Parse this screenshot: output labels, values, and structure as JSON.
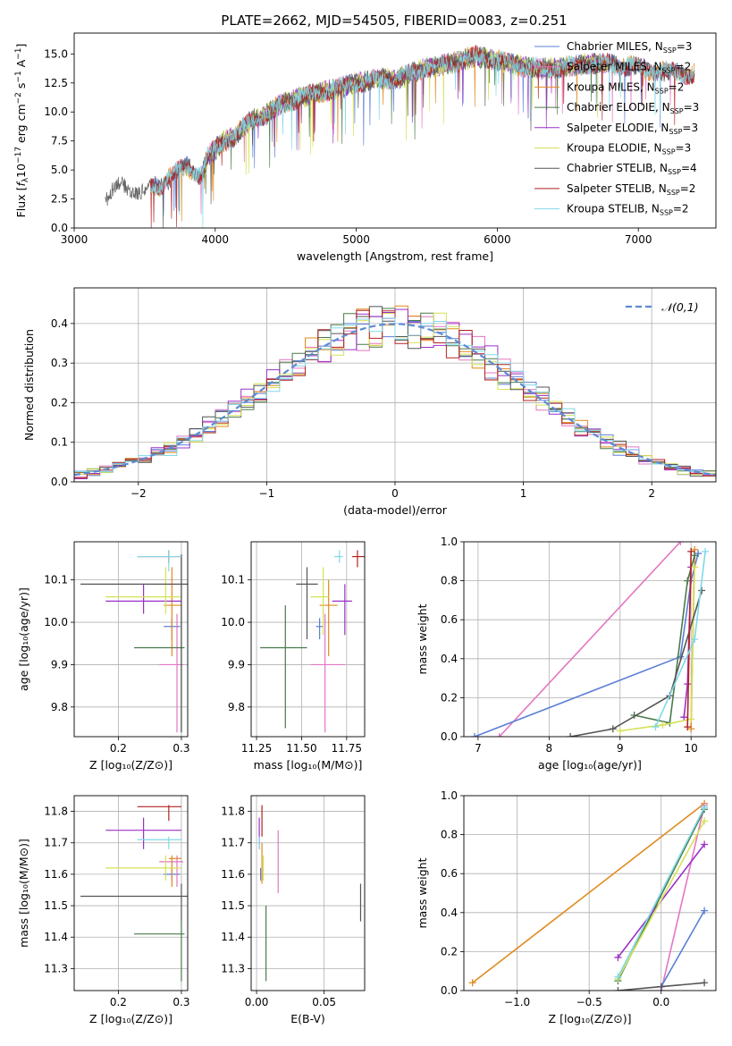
{
  "figure": {
    "title": "PLATE=2662, MJD=54505, FIBERID=0083, z=0.251"
  },
  "chart_data": [
    {
      "type": "line",
      "name": "spectrum",
      "xlabel": "wavelength [Angstrom, rest frame]",
      "ylabel_parts": [
        "Flux [",
        "f",
        "λ",
        "10",
        "−17",
        " erg cm",
        "−2",
        " s",
        "−1",
        " A",
        "−1",
        "]"
      ],
      "xlim": [
        3000,
        7550
      ],
      "ylim": [
        0,
        16.8
      ],
      "xticks": [
        3000,
        4000,
        5000,
        6000,
        7000
      ],
      "yticks": [
        0.0,
        2.5,
        5.0,
        7.5,
        10.0,
        12.5,
        15.0
      ],
      "grid": false,
      "legend_position": "top-right",
      "continuum": {
        "x": [
          3220,
          3300,
          3400,
          3500,
          3600,
          3700,
          3800,
          3900,
          3950,
          4050,
          4150,
          4250,
          4350,
          4450,
          4550,
          4700,
          4850,
          5000,
          5150,
          5300,
          5500,
          5700,
          5850,
          6000,
          6150,
          6300,
          6500,
          6700,
          6900,
          7100,
          7300
        ],
        "y": [
          2.6,
          3.6,
          3.3,
          3.3,
          3.6,
          4.6,
          5.3,
          4.5,
          6.2,
          7.4,
          8.0,
          9.3,
          9.7,
          10.6,
          11.0,
          11.6,
          12.0,
          12.5,
          12.8,
          12.9,
          13.8,
          14.3,
          14.8,
          14.5,
          14.0,
          13.7,
          13.9,
          14.2,
          14.0,
          13.6,
          13.3
        ]
      },
      "series": [
        {
          "name": "Chabrier MILES",
          "nssp": "3",
          "color": "#5B7FD6",
          "xrange": [
            3540,
            7400
          ]
        },
        {
          "name": "Salpeter MILES",
          "nssp": "2",
          "color": "#E377C2",
          "xrange": [
            3540,
            7400
          ]
        },
        {
          "name": "Kroupa MILES",
          "nssp": "2",
          "color": "#E08A1E",
          "xrange": [
            3540,
            7400
          ]
        },
        {
          "name": "Chabrier ELODIE",
          "nssp": "3",
          "color": "#4A7A4A",
          "xrange": [
            3900,
            6800
          ]
        },
        {
          "name": "Salpeter ELODIE",
          "nssp": "3",
          "color": "#9B30C8",
          "xrange": [
            3900,
            6800
          ]
        },
        {
          "name": "Kroupa ELODIE",
          "nssp": "3",
          "color": "#D4E157",
          "xrange": [
            3900,
            6800
          ]
        },
        {
          "name": "Chabrier STELIB",
          "nssp": "4",
          "color": "#555555",
          "xrange": [
            3220,
            7400
          ]
        },
        {
          "name": "Salpeter STELIB",
          "nssp": "2",
          "color": "#B22222",
          "xrange": [
            3540,
            7400
          ]
        },
        {
          "name": "Kroupa STELIB",
          "nssp": "2",
          "color": "#80D8E8",
          "xrange": [
            3540,
            7400
          ]
        }
      ]
    },
    {
      "type": "histogram",
      "name": "residuals",
      "xlabel": "(data-model)/error",
      "ylabel": "Normed distribution",
      "xlim": [
        -2.5,
        2.5
      ],
      "ylim": [
        0,
        0.49
      ],
      "xticks": [
        -2,
        -1,
        0,
        1,
        2
      ],
      "yticks": [
        0.0,
        0.1,
        0.2,
        0.3,
        0.4
      ],
      "grid": true,
      "bin_width": 0.1,
      "legend_position": "top-right",
      "reference": {
        "label": "𝒩(0,1)",
        "mean": 0,
        "sigma": 1,
        "color": "#5B8BD6"
      },
      "note": "nine step histograms, one per model fit, scattering around the N(0,1) curve"
    },
    {
      "type": "scatter",
      "name": "age-vs-Z",
      "xlabel": "Z [log₁₀(Z/Z⊙)]",
      "ylabel": "age  [log₁₀(age/yr)]",
      "xlim": [
        0.13,
        0.31
      ],
      "ylim": [
        9.73,
        10.19
      ],
      "xticks": [
        0.2,
        0.3
      ],
      "yticks": [
        9.8,
        9.9,
        10.0,
        10.1
      ],
      "grid": true,
      "points": [
        {
          "color": "#5B7FD6",
          "x": 0.285,
          "xlo": 0.272,
          "xhi": 0.298,
          "y": 9.99,
          "ylo": 9.96,
          "yhi": 10.01
        },
        {
          "color": "#E377C2",
          "x": 0.293,
          "xlo": 0.265,
          "xhi": 0.303,
          "y": 9.9,
          "ylo": 9.74,
          "yhi": 10.02
        },
        {
          "color": "#E08A1E",
          "x": 0.285,
          "xlo": 0.272,
          "xhi": 0.3,
          "y": 10.04,
          "ylo": 9.92,
          "yhi": 10.13
        },
        {
          "color": "#4A7A4A",
          "x": 0.3,
          "xlo": 0.225,
          "xhi": 0.305,
          "y": 9.94,
          "ylo": 9.74,
          "yhi": 10.16
        },
        {
          "color": "#9B30C8",
          "x": 0.24,
          "xlo": 0.18,
          "xhi": 0.3,
          "y": 10.05,
          "ylo": 10.02,
          "yhi": 10.09
        },
        {
          "color": "#D4E157",
          "x": 0.275,
          "xlo": 0.18,
          "xhi": 0.3,
          "y": 10.06,
          "ylo": 10.02,
          "yhi": 10.13
        },
        {
          "color": "#555555",
          "x": 0.3,
          "xlo": 0.14,
          "xhi": 0.31,
          "y": 10.09,
          "ylo": 9.74,
          "yhi": 10.16
        },
        {
          "color": "#B22222",
          "x": 0.28,
          "xlo": 0.23,
          "xhi": 0.3,
          "y": 10.155,
          "ylo": 10.14,
          "yhi": 10.17
        },
        {
          "color": "#80D8E8",
          "x": 0.28,
          "xlo": 0.23,
          "xhi": 0.3,
          "y": 10.155,
          "ylo": 10.12,
          "yhi": 10.17
        }
      ]
    },
    {
      "type": "scatter",
      "name": "age-vs-mass",
      "xlabel": "mass [log₁₀(M/M⊙)]",
      "ylabel": "",
      "xlim": [
        11.22,
        11.85
      ],
      "ylim": [
        9.73,
        10.19
      ],
      "xticks": [
        11.25,
        11.5,
        11.75
      ],
      "yticks": [
        9.8,
        9.9,
        10.0,
        10.1
      ],
      "grid": true,
      "points": [
        {
          "color": "#5B7FD6",
          "x": 11.6,
          "xlo": 11.58,
          "xhi": 11.62,
          "y": 9.99,
          "ylo": 9.96,
          "yhi": 10.01
        },
        {
          "color": "#E377C2",
          "x": 11.63,
          "xlo": 11.55,
          "xhi": 11.74,
          "y": 9.9,
          "ylo": 9.74,
          "yhi": 10.02
        },
        {
          "color": "#E08A1E",
          "x": 11.65,
          "xlo": 11.6,
          "xhi": 11.7,
          "y": 10.04,
          "ylo": 9.92,
          "yhi": 10.1
        },
        {
          "color": "#4A7A4A",
          "x": 11.41,
          "xlo": 11.27,
          "xhi": 11.53,
          "y": 9.94,
          "ylo": 9.75,
          "yhi": 10.04
        },
        {
          "color": "#9B30C8",
          "x": 11.74,
          "xlo": 11.67,
          "xhi": 11.78,
          "y": 10.05,
          "ylo": 9.97,
          "yhi": 10.09
        },
        {
          "color": "#D4E157",
          "x": 11.62,
          "xlo": 11.55,
          "xhi": 11.65,
          "y": 10.06,
          "ylo": 9.97,
          "yhi": 10.13
        },
        {
          "color": "#555555",
          "x": 11.53,
          "xlo": 11.47,
          "xhi": 11.59,
          "y": 10.09,
          "ylo": 9.96,
          "yhi": 10.13
        },
        {
          "color": "#B22222",
          "x": 11.81,
          "xlo": 11.78,
          "xhi": 11.85,
          "y": 10.155,
          "ylo": 10.13,
          "yhi": 10.17
        },
        {
          "color": "#80D8E8",
          "x": 11.71,
          "xlo": 11.68,
          "xhi": 11.73,
          "y": 10.155,
          "ylo": 10.14,
          "yhi": 10.17
        }
      ]
    },
    {
      "type": "line",
      "name": "massweight-vs-age",
      "xlabel": "age  [log₁₀(age/yr)]",
      "ylabel": "mass weight",
      "xlim": [
        6.8,
        10.35
      ],
      "ylim": [
        0,
        1
      ],
      "xticks": [
        7,
        8,
        9,
        10
      ],
      "yticks": [
        0.0,
        0.2,
        0.4,
        0.6,
        0.8,
        1.0
      ],
      "grid": true,
      "series": [
        {
          "color": "#E377C2",
          "x": [
            7.3,
            9.85
          ],
          "y": [
            0.0,
            1.0
          ]
        },
        {
          "color": "#5B7FD6",
          "x": [
            6.95,
            9.85,
            10.0,
            10.1
          ],
          "y": [
            0.0,
            0.41,
            0.8,
            0.94
          ]
        },
        {
          "color": "#E08A1E",
          "x": [
            10.0,
            10.05
          ],
          "y": [
            0.04,
            0.96
          ]
        },
        {
          "color": "#4A7A4A",
          "x": [
            9.2,
            9.7,
            9.95,
            10.05
          ],
          "y": [
            0.11,
            0.07,
            0.8,
            0.93
          ]
        },
        {
          "color": "#9B30C8",
          "x": [
            9.9,
            9.95,
            10.0
          ],
          "y": [
            0.1,
            0.27,
            0.87
          ]
        },
        {
          "color": "#D4E157",
          "x": [
            9.0,
            9.6,
            10.0,
            10.05
          ],
          "y": [
            0.03,
            0.06,
            0.09,
            0.87
          ]
        },
        {
          "color": "#555555",
          "x": [
            8.3,
            8.9,
            9.7,
            10.15
          ],
          "y": [
            0.0,
            0.04,
            0.21,
            0.75
          ]
        },
        {
          "color": "#B22222",
          "x": [
            9.95,
            10.0
          ],
          "y": [
            0.05,
            0.95
          ]
        },
        {
          "color": "#80D8E8",
          "x": [
            9.5,
            10.05,
            10.2
          ],
          "y": [
            0.05,
            0.5,
            0.95
          ]
        }
      ]
    },
    {
      "type": "scatter",
      "name": "mass-vs-Z",
      "xlabel": "Z [log₁₀(Z/Z⊙)]",
      "ylabel": "mass [log₁₀(M/M⊙)]",
      "xlim": [
        0.13,
        0.31
      ],
      "ylim": [
        11.23,
        11.85
      ],
      "xticks": [
        0.2,
        0.3
      ],
      "yticks": [
        11.3,
        11.4,
        11.5,
        11.6,
        11.7,
        11.8
      ],
      "grid": true,
      "points": [
        {
          "color": "#5B7FD6",
          "x": 0.285,
          "xlo": 0.272,
          "xhi": 0.298,
          "y": 11.6,
          "ylo": 11.58,
          "yhi": 11.62
        },
        {
          "color": "#E377C2",
          "x": 0.293,
          "xlo": 0.265,
          "xhi": 0.303,
          "y": 11.64,
          "ylo": 11.56,
          "yhi": 11.66
        },
        {
          "color": "#E08A1E",
          "x": 0.285,
          "xlo": 0.28,
          "xhi": 0.3,
          "y": 11.65,
          "ylo": 11.56,
          "yhi": 11.66
        },
        {
          "color": "#4A7A4A",
          "x": 0.3,
          "xlo": 0.225,
          "xhi": 0.305,
          "y": 11.41,
          "ylo": 11.26,
          "yhi": 11.45
        },
        {
          "color": "#9B30C8",
          "x": 0.24,
          "xlo": 0.18,
          "xhi": 0.3,
          "y": 11.74,
          "ylo": 11.68,
          "yhi": 11.78
        },
        {
          "color": "#D4E157",
          "x": 0.275,
          "xlo": 0.18,
          "xhi": 0.3,
          "y": 11.62,
          "ylo": 11.58,
          "yhi": 11.66
        },
        {
          "color": "#555555",
          "x": 0.3,
          "xlo": 0.14,
          "xhi": 0.31,
          "y": 11.53,
          "ylo": 11.45,
          "yhi": 11.57
        },
        {
          "color": "#B22222",
          "x": 0.28,
          "xlo": 0.23,
          "xhi": 0.3,
          "y": 11.815,
          "ylo": 11.77,
          "yhi": 11.82
        },
        {
          "color": "#80D8E8",
          "x": 0.28,
          "xlo": 0.23,
          "xhi": 0.3,
          "y": 11.71,
          "ylo": 11.68,
          "yhi": 11.72
        }
      ]
    },
    {
      "type": "scatter",
      "name": "mass-vs-EBV",
      "xlabel": "E(B-V)",
      "ylabel": "",
      "xlim": [
        -0.004,
        0.08
      ],
      "ylim": [
        11.23,
        11.85
      ],
      "xticks": [
        0.0,
        0.05
      ],
      "yticks": [
        11.3,
        11.4,
        11.5,
        11.6,
        11.7,
        11.8
      ],
      "grid": true,
      "points": [
        {
          "color": "#5B7FD6",
          "x": 0.003,
          "ylo": 11.58,
          "yhi": 11.62
        },
        {
          "color": "#E377C2",
          "x": 0.016,
          "ylo": 11.54,
          "yhi": 11.74
        },
        {
          "color": "#E08A1E",
          "x": 0.004,
          "ylo": 11.57,
          "yhi": 11.7
        },
        {
          "color": "#4A7A4A",
          "x": 0.007,
          "ylo": 11.26,
          "yhi": 11.5
        },
        {
          "color": "#9B30C8",
          "x": 0.002,
          "ylo": 11.68,
          "yhi": 11.78
        },
        {
          "color": "#D4E157",
          "x": 0.005,
          "ylo": 11.58,
          "yhi": 11.66
        },
        {
          "color": "#555555",
          "x": 0.077,
          "ylo": 11.45,
          "yhi": 11.57
        },
        {
          "color": "#B22222",
          "x": 0.004,
          "ylo": 11.72,
          "yhi": 11.82
        },
        {
          "color": "#80D8E8",
          "x": 0.002,
          "ylo": 11.68,
          "yhi": 11.72
        }
      ]
    },
    {
      "type": "line",
      "name": "massweight-vs-Z",
      "xlabel": "Z [log₁₀(Z/Z⊙)]",
      "ylabel": "mass weight",
      "xlim": [
        -1.37,
        0.38
      ],
      "ylim": [
        0,
        1
      ],
      "xticks": [
        -1.0,
        -0.5,
        0.0
      ],
      "yticks": [
        0.0,
        0.2,
        0.4,
        0.6,
        0.8,
        1.0
      ],
      "grid": true,
      "series": [
        {
          "color": "#E08A1E",
          "x": [
            -1.31,
            0.3
          ],
          "y": [
            0.04,
            0.96
          ]
        },
        {
          "color": "#E377C2",
          "x": [
            0.0,
            0.3
          ],
          "y": [
            0.0,
            0.95
          ]
        },
        {
          "color": "#5B7FD6",
          "x": [
            0.0,
            0.3
          ],
          "y": [
            0.02,
            0.41
          ]
        },
        {
          "color": "#4A7A4A",
          "x": [
            -0.3,
            0.3
          ],
          "y": [
            0.05,
            0.93
          ]
        },
        {
          "color": "#9B30C8",
          "x": [
            -0.3,
            0.3
          ],
          "y": [
            0.17,
            0.75
          ]
        },
        {
          "color": "#D4E157",
          "x": [
            -0.3,
            0.3
          ],
          "y": [
            0.06,
            0.87
          ]
        },
        {
          "color": "#555555",
          "x": [
            -0.3,
            0.0,
            0.3
          ],
          "y": [
            0.0,
            0.02,
            0.04
          ]
        },
        {
          "color": "#80D8E8",
          "x": [
            -0.3,
            0.3
          ],
          "y": [
            0.07,
            0.94
          ]
        }
      ]
    }
  ]
}
